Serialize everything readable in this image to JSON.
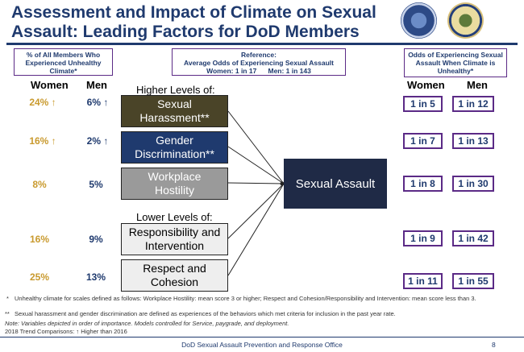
{
  "title": "Assessment and Impact of Climate on Sexual Assault: Leading Factors for DoD Members",
  "headers": {
    "left": "% of All Members Who Experienced Unhealthy Climate*",
    "center_line1": "Reference:",
    "center_line2": "Average Odds of Experiencing Sexual Assault",
    "center_line3": "Women: 1 in 17      Men: 1 in 143",
    "right": "Odds of Experiencing Sexual Assault When Climate is Unhealthy*"
  },
  "col_labels": {
    "women": "Women",
    "men": "Men"
  },
  "sections": {
    "higher": "Higher Levels of:",
    "lower": "Lower Levels of:"
  },
  "outcome": "Sexual Assault",
  "factors": [
    {
      "line1": "Sexual",
      "line2": "Harassment**",
      "women_pct": "24% ↑",
      "men_pct": "6% ↑",
      "women_odds": "1 in 5",
      "men_odds": "1 in 12"
    },
    {
      "line1": "Gender",
      "line2": "Discrimination**",
      "women_pct": "16% ↑",
      "men_pct": "2% ↑",
      "women_odds": "1 in 7",
      "men_odds": "1 in 13"
    },
    {
      "line1": "Workplace",
      "line2": "Hostility",
      "women_pct": "8%",
      "men_pct": "5%",
      "women_odds": "1 in 8",
      "men_odds": "1 in 30"
    },
    {
      "line1": "Responsibility and",
      "line2": "Intervention",
      "women_pct": "16%",
      "men_pct": "9%",
      "women_odds": "1 in 9",
      "men_odds": "1 in 42"
    },
    {
      "line1": "Respect and",
      "line2": "Cohesion",
      "women_pct": "25%",
      "men_pct": "13%",
      "women_odds": "1 in 11",
      "men_odds": "1 in 55"
    }
  ],
  "notes": {
    "n1": "Unhealthy climate for scales defined as follows: Workplace Hostility: mean score 3 or higher; Respect and Cohesion/Responsibility and Intervention: mean score less than 3.",
    "n2": "Sexual harassment and gender discrimination are defined as experiences of the behaviors which met criteria for inclusion in the past year rate.",
    "n3": "Note: Variables depicted in order of importance. Models controlled for Service, paygrade, and deployment.",
    "n4": "2018 Trend Comparisons:  ↑ Higher than 2016",
    "b1": "*",
    "b2": "**"
  },
  "footer": {
    "text": "DoD Sexual Assault Prevention and Response Office",
    "page": "8"
  },
  "colors": {
    "navy": "#1f3a6e",
    "gold": "#c99a2e",
    "purple": "#5b2a86",
    "harassment": "#4a4428",
    "hostility": "#9a9a9a"
  }
}
